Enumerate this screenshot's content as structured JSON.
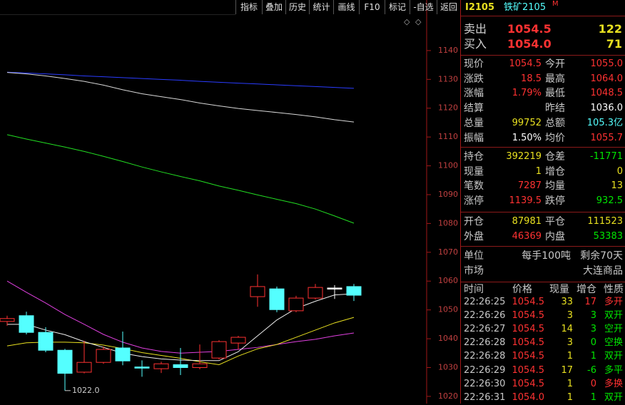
{
  "toolbar": [
    "指标",
    "叠加",
    "历史",
    "统计",
    "画线",
    "F10",
    "标记",
    "-自选",
    "返回"
  ],
  "instrument": {
    "code": "I2105",
    "name": "铁矿2105",
    "flag": "M"
  },
  "chart_data": {
    "type": "candlestick",
    "open": [
      1046.0,
      1048.0,
      1042.2,
      1036.0,
      1028.4,
      1031.8,
      1036.8,
      1030.2,
      1029.6,
      1031.0,
      1030.0,
      1033.3,
      1038.5,
      1054.6,
      1057.3,
      1049.7,
      1054.1,
      1057.6,
      1058.1
    ],
    "high": [
      1048.0,
      1049.4,
      1044.0,
      1036.5,
      1039.3,
      1037.3,
      1042.5,
      1032.5,
      1032.0,
      1036.8,
      1038.0,
      1039.5,
      1041.0,
      1062.3,
      1058.1,
      1054.9,
      1059.0,
      1058.6,
      1059.0
    ],
    "low": [
      1044.5,
      1041.5,
      1035.3,
      1022.0,
      1028.0,
      1031.3,
      1030.8,
      1026.8,
      1028.1,
      1027.4,
      1029.4,
      1032.8,
      1036.3,
      1051.1,
      1049.2,
      1049.2,
      1053.6,
      1053.8,
      1053.1
    ],
    "close": [
      1047.0,
      1042.2,
      1036.0,
      1028.0,
      1031.8,
      1036.3,
      1032.3,
      1029.8,
      1031.3,
      1030.0,
      1031.3,
      1039.0,
      1040.5,
      1058.1,
      1050.1,
      1054.1,
      1057.8,
      1057.6,
      1055.1
    ],
    "up_color": "#ff3232",
    "down_color": "#54ffff",
    "flat_color": "#ffffff",
    "lines": [
      {
        "color": "#2a3cff",
        "values": [
          1132.5,
          1132.2,
          1131.9,
          1131.6,
          1131.2,
          1130.9,
          1130.6,
          1130.3,
          1130.0,
          1129.7,
          1129.3,
          1129.0,
          1128.7,
          1128.4,
          1128.1,
          1127.8,
          1127.5,
          1127.2,
          1126.9
        ]
      },
      {
        "color": "#d8d8d8",
        "values": [
          1132.4,
          1131.9,
          1131.2,
          1130.3,
          1129.3,
          1128.0,
          1126.4,
          1125.0,
          1124.0,
          1123.0,
          1121.8,
          1120.8,
          1119.9,
          1119.2,
          1118.5,
          1117.8,
          1117.0,
          1116.0,
          1115.2
        ]
      },
      {
        "color": "#22dd22",
        "values": [
          1110.8,
          1109.3,
          1107.9,
          1106.5,
          1105.0,
          1103.3,
          1101.5,
          1099.6,
          1097.9,
          1096.3,
          1094.8,
          1093.0,
          1091.5,
          1089.9,
          1088.4,
          1086.9,
          1085.0,
          1082.6,
          1080.1
        ]
      },
      {
        "color": "#e040e0",
        "values": [
          1060.0,
          1056.1,
          1052.4,
          1048.4,
          1045.0,
          1041.5,
          1038.8,
          1036.8,
          1035.6,
          1035.0,
          1035.3,
          1035.6,
          1036.3,
          1037.0,
          1038.0,
          1039.0,
          1039.8,
          1041.0,
          1042.0
        ]
      },
      {
        "color": "#e8e020",
        "values": [
          1037.5,
          1038.6,
          1038.8,
          1038.8,
          1038.6,
          1037.8,
          1036.6,
          1035.2,
          1034.2,
          1033.2,
          1032.0,
          1031.0,
          1034.0,
          1036.5,
          1038.0,
          1040.5,
          1043.0,
          1045.5,
          1047.4
        ]
      },
      {
        "color": "#f0f0f0",
        "values": [
          1045.0,
          1045.0,
          1043.0,
          1041.4,
          1039.0,
          1037.0,
          1035.0,
          1033.8,
          1033.0,
          1032.6,
          1032.4,
          1032.4,
          1035.5,
          1041.0,
          1046.5,
          1050.5,
          1053.0,
          1055.2,
          1055.6
        ]
      }
    ],
    "annotation": "1022.0",
    "ylim": [
      1017.5,
      1152.1
    ],
    "yticks": [
      1140,
      1130,
      1120,
      1110,
      1100,
      1090,
      1080,
      1070,
      1060,
      1050,
      1040,
      1030,
      1020
    ]
  },
  "order_book": [
    {
      "label": "卖出",
      "price": "1054.5",
      "volume": "122"
    },
    {
      "label": "买入",
      "price": "1054.0",
      "volume": "71"
    }
  ],
  "quotes": [
    [
      [
        {
          "label": "现价",
          "value": "1054.5",
          "color": "#ff3232"
        },
        {
          "label": "今开",
          "value": "1055.0",
          "color": "#ff3232"
        }
      ],
      [
        {
          "label": "涨跌",
          "value": "18.5",
          "color": "#ff3232"
        },
        {
          "label": "最高",
          "value": "1064.0",
          "color": "#ff3232"
        }
      ],
      [
        {
          "label": "涨幅",
          "value": "1.79%",
          "color": "#ff3232"
        },
        {
          "label": "最低",
          "value": "1048.5",
          "color": "#ff3232"
        }
      ],
      [
        {
          "label": "结算"
        },
        {
          "label": "昨结",
          "value": "1036.0",
          "color": "#ffffff"
        }
      ],
      [
        {
          "label": "总量",
          "value": "99752",
          "color": "#e8e020"
        },
        {
          "label": "总额",
          "value": "105.3亿",
          "color": "#54ffff"
        }
      ],
      [
        {
          "label": "振幅",
          "value": "1.50%",
          "color": "#ffffff"
        },
        {
          "label": "均价",
          "value": "1055.7",
          "color": "#ff3232"
        }
      ]
    ],
    [
      [
        {
          "label": "持仓",
          "value": "392219",
          "color": "#e8e020"
        },
        {
          "label": "仓差",
          "value": "-11771",
          "color": "#00e600"
        }
      ],
      [
        {
          "label": "现量",
          "value": "1",
          "color": "#e8e020"
        },
        {
          "label": "增仓",
          "value": "0",
          "color": "#e8e020"
        }
      ],
      [
        {
          "label": "笔数",
          "value": "7287",
          "color": "#ff3232"
        },
        {
          "label": "均量",
          "value": "13",
          "color": "#e8e020"
        }
      ],
      [
        {
          "label": "涨停",
          "value": "1139.5",
          "color": "#ff3232"
        },
        {
          "label": "跌停",
          "value": "932.5",
          "color": "#00e600"
        }
      ]
    ],
    [
      [
        {
          "label": "开仓",
          "value": "87981",
          "color": "#e8e020"
        },
        {
          "label": "平仓",
          "value": "111523",
          "color": "#e8e020"
        }
      ],
      [
        {
          "label": "外盘",
          "value": "46369",
          "color": "#ff3232"
        },
        {
          "label": "内盘",
          "value": "53383",
          "color": "#00e600"
        }
      ]
    ]
  ],
  "info": [
    {
      "label": "单位",
      "values": [
        "每手100吨",
        "剩余70天"
      ]
    },
    {
      "label": "市场",
      "values": [
        "大连商品"
      ]
    }
  ],
  "trades": {
    "columns": [
      "时间",
      "价格",
      "现量",
      "增仓",
      "性质"
    ],
    "rows": [
      {
        "time": "22:26:25",
        "price": "1054.5",
        "volume": "33",
        "change": "17",
        "kind": "多开",
        "color": "#ff3232"
      },
      {
        "time": "22:26:26",
        "price": "1054.5",
        "volume": "3",
        "change": "3",
        "kind": "双开",
        "color": "#00e600"
      },
      {
        "time": "22:26:27",
        "price": "1054.5",
        "volume": "14",
        "change": "3",
        "kind": "空开",
        "color": "#00e600"
      },
      {
        "time": "22:26:28",
        "price": "1054.5",
        "volume": "3",
        "change": "0",
        "kind": "空换",
        "color": "#00e600"
      },
      {
        "time": "22:26:28",
        "price": "1054.5",
        "volume": "1",
        "change": "1",
        "kind": "双开",
        "color": "#00e600"
      },
      {
        "time": "22:26:29",
        "price": "1054.5",
        "volume": "17",
        "change": "-6",
        "kind": "多平",
        "color": "#00e600"
      },
      {
        "time": "22:26:30",
        "price": "1054.5",
        "volume": "1",
        "change": "0",
        "kind": "多换",
        "color": "#ff3232"
      },
      {
        "time": "22:26:31",
        "price": "1054.0",
        "volume": "1",
        "change": "1",
        "kind": "双开",
        "color": "#00e600"
      }
    ]
  }
}
